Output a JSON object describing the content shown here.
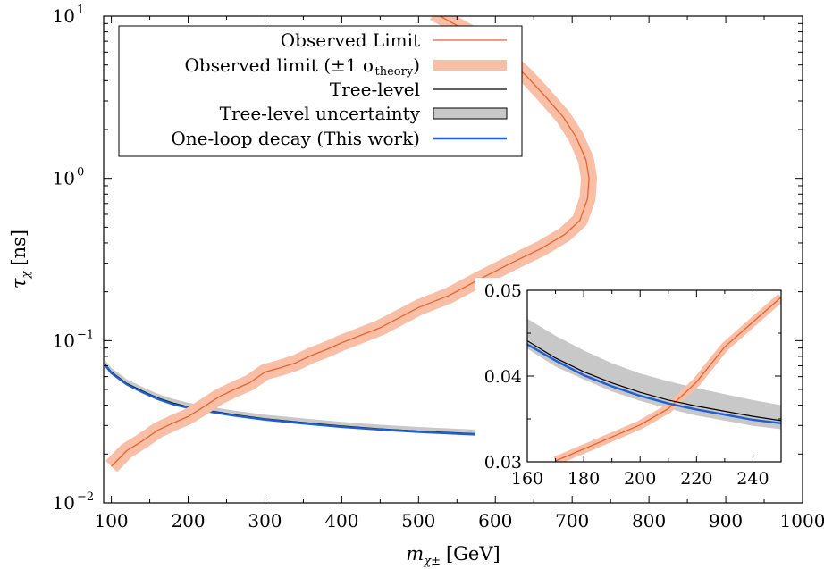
{
  "chart_data": [
    {
      "type": "line",
      "xlabel_main": "m",
      "xlabel_sub": "χ±",
      "xlabel_unit": "[GeV]",
      "ylabel_main": "τ",
      "ylabel_sub": "χ",
      "ylabel_unit": "[ns]",
      "x_scale": "linear",
      "y_scale": "log",
      "xlim": [
        90,
        1000
      ],
      "ylim": [
        0.01,
        10
      ],
      "x_ticks": [
        100,
        200,
        300,
        400,
        500,
        600,
        700,
        800,
        900,
        1000
      ],
      "y_ticks": [
        {
          "value": 10,
          "base": "10",
          "exp": "1"
        },
        {
          "value": 1,
          "base": "10",
          "exp": "0"
        },
        {
          "value": 0.1,
          "base": "10",
          "exp": "−1"
        },
        {
          "value": 0.01,
          "base": "10",
          "exp": "−2"
        }
      ],
      "legend_position": "top-left",
      "legend": [
        {
          "label": "Observed Limit",
          "style": "orange-line"
        },
        {
          "label_main": "Observed limit (±1 σ",
          "label_sub": "theory",
          "label_end": ")",
          "style": "orange-band"
        },
        {
          "label": "Tree-level",
          "style": "black-line"
        },
        {
          "label": "Tree-level uncertainty",
          "style": "gray-box"
        },
        {
          "label": "One-loop decay (This work)",
          "style": "blue-line"
        }
      ],
      "colors": {
        "observed": "#e8622a",
        "observed_band": "#f8bfa6",
        "tree": "#000000",
        "tree_band": "#c8c8c8",
        "one_loop": "#1f5fd6"
      },
      "series": [
        {
          "key": "observed",
          "band_rel_width": 0.06,
          "points": [
            [
              100,
              0.0168
            ],
            [
              120,
              0.021
            ],
            [
              140,
              0.024
            ],
            [
              160,
              0.028
            ],
            [
              180,
              0.031
            ],
            [
              200,
              0.034
            ],
            [
              220,
              0.039
            ],
            [
              240,
              0.045
            ],
            [
              260,
              0.05
            ],
            [
              280,
              0.055
            ],
            [
              300,
              0.064
            ],
            [
              320,
              0.068
            ],
            [
              340,
              0.073
            ],
            [
              360,
              0.081
            ],
            [
              380,
              0.088
            ],
            [
              400,
              0.097
            ],
            [
              450,
              0.12
            ],
            [
              500,
              0.16
            ],
            [
              540,
              0.19
            ],
            [
              580,
              0.24
            ],
            [
              620,
              0.3
            ],
            [
              660,
              0.37
            ],
            [
              690,
              0.45
            ],
            [
              710,
              0.55
            ],
            [
              720,
              0.75
            ],
            [
              722,
              1.0
            ],
            [
              718,
              1.3
            ],
            [
              705,
              1.8
            ],
            [
              688,
              2.4
            ],
            [
              665,
              3.2
            ],
            [
              640,
              4.3
            ],
            [
              615,
              5.5
            ],
            [
              590,
              6.7
            ],
            [
              565,
              8.0
            ],
            [
              540,
              9.3
            ],
            [
              520,
              10.5
            ]
          ]
        },
        {
          "key": "tree",
          "band_upper": 1.06,
          "band_lower": 0.985,
          "points": [
            [
              92,
              0.0715
            ],
            [
              100,
              0.064
            ],
            [
              120,
              0.0545
            ],
            [
              140,
              0.049
            ],
            [
              160,
              0.0444
            ],
            [
              180,
              0.0413
            ],
            [
              200,
              0.0391
            ],
            [
              220,
              0.0375
            ],
            [
              240,
              0.0362
            ],
            [
              260,
              0.035
            ],
            [
              300,
              0.033
            ],
            [
              350,
              0.0313
            ],
            [
              400,
              0.0298
            ],
            [
              450,
              0.0286
            ],
            [
              500,
              0.0277
            ],
            [
              550,
              0.027
            ],
            [
              590,
              0.0265
            ]
          ]
        },
        {
          "key": "one_loop",
          "points": [
            [
              92,
              0.0705
            ],
            [
              100,
              0.063
            ],
            [
              120,
              0.0537
            ],
            [
              140,
              0.0482
            ],
            [
              160,
              0.0437
            ],
            [
              180,
              0.0406
            ],
            [
              200,
              0.0385
            ],
            [
              220,
              0.037
            ],
            [
              240,
              0.0357
            ],
            [
              260,
              0.0345
            ],
            [
              300,
              0.0326
            ],
            [
              350,
              0.0309
            ],
            [
              400,
              0.0294
            ],
            [
              450,
              0.0283
            ],
            [
              500,
              0.0274
            ],
            [
              550,
              0.0267
            ],
            [
              590,
              0.0262
            ]
          ]
        }
      ]
    },
    {
      "type": "line",
      "role": "inset",
      "x_scale": "linear",
      "y_scale": "linear",
      "xlim": [
        160,
        250
      ],
      "ylim": [
        0.03,
        0.05
      ],
      "x_ticks": [
        160,
        180,
        200,
        220,
        240
      ],
      "y_ticks": [
        0.03,
        0.04,
        0.05
      ],
      "x_tick_labels": [
        "160",
        "180",
        "200",
        "220",
        "240"
      ],
      "y_tick_labels": [
        "0.03",
        "0.04",
        "0.05"
      ],
      "series": [
        {
          "key": "observed",
          "band_rel_width": 0.02,
          "points": [
            [
              170,
              0.0301
            ],
            [
              180,
              0.0315
            ],
            [
              190,
              0.0329
            ],
            [
              200,
              0.0343
            ],
            [
              210,
              0.0362
            ],
            [
              220,
              0.0393
            ],
            [
              230,
              0.0434
            ],
            [
              240,
              0.0463
            ],
            [
              250,
              0.0492
            ]
          ]
        },
        {
          "key": "tree",
          "band_upper_points": [
            [
              160,
              0.0467
            ],
            [
              170,
              0.0447
            ],
            [
              180,
              0.043
            ],
            [
              190,
              0.0415
            ],
            [
              200,
              0.0403
            ],
            [
              210,
              0.0394
            ],
            [
              220,
              0.0386
            ],
            [
              230,
              0.0379
            ],
            [
              240,
              0.0372
            ],
            [
              250,
              0.0366
            ]
          ],
          "band_lower_points": [
            [
              160,
              0.0432
            ],
            [
              170,
              0.0411
            ],
            [
              180,
              0.0396
            ],
            [
              190,
              0.0382
            ],
            [
              200,
              0.0371
            ],
            [
              210,
              0.0362
            ],
            [
              220,
              0.0354
            ],
            [
              230,
              0.0348
            ],
            [
              240,
              0.0342
            ],
            [
              250,
              0.0338
            ]
          ],
          "points": [
            [
              160,
              0.0441
            ],
            [
              170,
              0.0421
            ],
            [
              180,
              0.0405
            ],
            [
              190,
              0.0392
            ],
            [
              200,
              0.0381
            ],
            [
              210,
              0.0372
            ],
            [
              220,
              0.0365
            ],
            [
              230,
              0.0359
            ],
            [
              240,
              0.0353
            ],
            [
              250,
              0.0348
            ]
          ]
        },
        {
          "key": "one_loop",
          "points": [
            [
              160,
              0.0437
            ],
            [
              170,
              0.0418
            ],
            [
              180,
              0.0401
            ],
            [
              190,
              0.0388
            ],
            [
              200,
              0.0377
            ],
            [
              210,
              0.0368
            ],
            [
              220,
              0.0361
            ],
            [
              230,
              0.0355
            ],
            [
              240,
              0.0349
            ],
            [
              250,
              0.0345
            ]
          ]
        }
      ]
    }
  ]
}
